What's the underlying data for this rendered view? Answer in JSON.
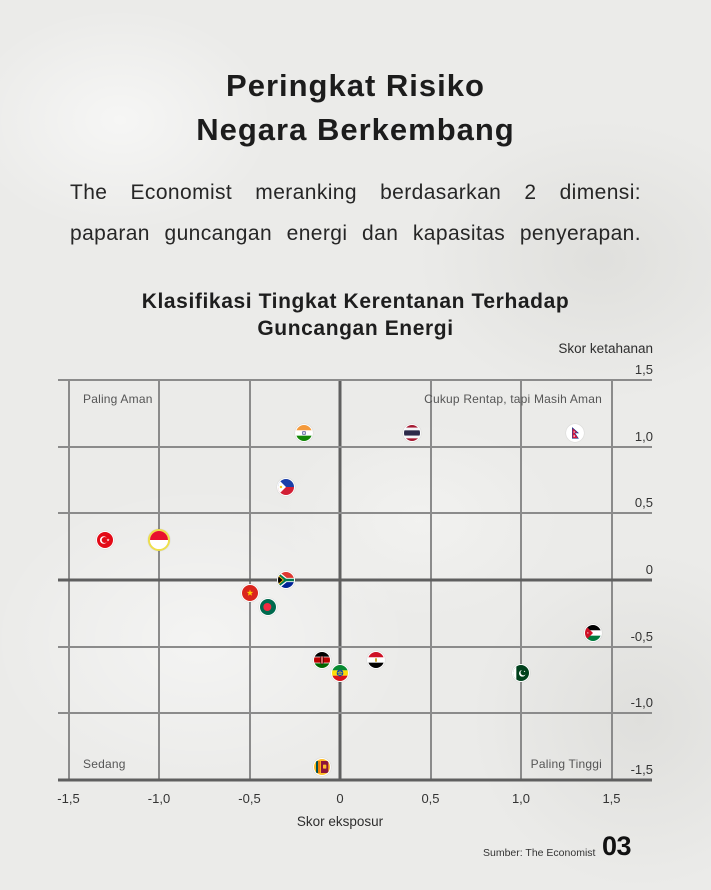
{
  "header": {
    "title_line1": "Peringkat Risiko",
    "title_line2": "Negara Berkembang"
  },
  "intro": {
    "line1": "The Economist meranking berdasarkan 2 dimensi:",
    "line2": "paparan guncangan energi dan kapasitas penyerapan."
  },
  "chart_data": {
    "type": "scatter",
    "title": "Klasifikasi Tingkat Kerentanan Terhadap Guncangan Energi",
    "title_lines": [
      "Klasifikasi Tingkat Kerentanan Terhadap",
      "Guncangan Energi"
    ],
    "xlabel": "Skor eksposur",
    "ylabel": "Skor ketahanan",
    "xlim": [
      -1.5,
      1.5
    ],
    "ylim": [
      -1.5,
      1.5
    ],
    "grid": true,
    "legend": "none (points are country flag markers)",
    "x_ticks": [
      -1.5,
      -1.0,
      -0.5,
      0,
      0.5,
      1.0,
      1.5
    ],
    "x_tick_labels": [
      "-1,5",
      "-1,0",
      "-0,5",
      "0",
      "0,5",
      "1,0",
      "1,5"
    ],
    "y_ticks": [
      1.5,
      1.0,
      0.5,
      0,
      -0.5,
      -1.0,
      -1.5
    ],
    "y_tick_labels": [
      "1,5",
      "1,0",
      "0,5",
      "0",
      "-0,5",
      "-1,0",
      "-1,5"
    ],
    "quadrant_labels": {
      "top_left": "Paling Aman",
      "top_right": "Cukup Rentap, tapi Masih Aman",
      "bottom_left": "Sedang",
      "bottom_right": "Paling Tinggi"
    },
    "points": [
      {
        "country": "Turkey",
        "icon": "flag-turkey-icon",
        "flag": "tr",
        "x": -1.3,
        "y": 0.3
      },
      {
        "country": "Indonesia",
        "icon": "flag-indonesia-icon",
        "flag": "id",
        "x": -1.0,
        "y": 0.3,
        "highlight": true
      },
      {
        "country": "India",
        "icon": "flag-india-icon",
        "flag": "in",
        "x": -0.2,
        "y": 1.1
      },
      {
        "country": "Philippines",
        "icon": "flag-philippines-icon",
        "flag": "ph",
        "x": -0.3,
        "y": 0.7
      },
      {
        "country": "South Africa",
        "icon": "flag-south-africa-icon",
        "flag": "za",
        "x": -0.3,
        "y": 0.0
      },
      {
        "country": "Vietnam",
        "icon": "flag-vietnam-icon",
        "flag": "vn",
        "x": -0.5,
        "y": -0.1
      },
      {
        "country": "Bangladesh",
        "icon": "flag-bangladesh-icon",
        "flag": "bd",
        "x": -0.4,
        "y": -0.2
      },
      {
        "country": "Kenya",
        "icon": "flag-kenya-icon",
        "flag": "ke",
        "x": -0.1,
        "y": -0.6
      },
      {
        "country": "Ethiopia",
        "icon": "flag-ethiopia-icon",
        "flag": "et",
        "x": 0.0,
        "y": -0.7
      },
      {
        "country": "Egypt",
        "icon": "flag-egypt-icon",
        "flag": "eg",
        "x": 0.2,
        "y": -0.6
      },
      {
        "country": "Sri Lanka",
        "icon": "flag-sri-lanka-icon",
        "flag": "lk",
        "x": -0.1,
        "y": -1.4
      },
      {
        "country": "Thailand",
        "icon": "flag-thailand-icon",
        "flag": "th",
        "x": 0.4,
        "y": 1.1
      },
      {
        "country": "Nepal",
        "icon": "flag-nepal-icon",
        "flag": "np",
        "x": 1.3,
        "y": 1.1
      },
      {
        "country": "Pakistan",
        "icon": "flag-pakistan-icon",
        "flag": "pk",
        "x": 1.0,
        "y": -0.7
      },
      {
        "country": "Jordan",
        "icon": "flag-jordan-icon",
        "flag": "jo",
        "x": 1.4,
        "y": -0.4
      }
    ]
  },
  "footer": {
    "source": "Sumber: The Economist",
    "page_number": "03"
  }
}
